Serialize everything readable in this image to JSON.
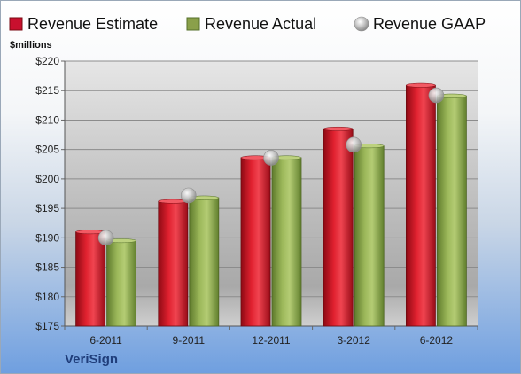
{
  "chart_data": {
    "type": "bar",
    "unit_label": "$millions",
    "categories": [
      "6-2011",
      "9-2011",
      "12-2011",
      "3-2012",
      "6-2012"
    ],
    "series": [
      {
        "name": "Revenue Estimate",
        "type": "bar",
        "color": "#c8102e",
        "values": [
          191.0,
          196.2,
          203.6,
          208.5,
          215.9
        ]
      },
      {
        "name": "Revenue Actual",
        "type": "bar",
        "color": "#8aa04a",
        "values": [
          189.5,
          196.8,
          203.6,
          205.6,
          214.1
        ]
      },
      {
        "name": "Revenue GAAP",
        "type": "marker",
        "color": "#b0b0b0",
        "values": [
          190.0,
          197.2,
          203.6,
          205.8,
          214.2
        ]
      }
    ],
    "ylim": [
      175,
      220
    ],
    "yticks": [
      "$175",
      "$180",
      "$185",
      "$190",
      "$195",
      "$200",
      "$205",
      "$210",
      "$215",
      "$220"
    ],
    "grid": true,
    "legend_position": "top"
  },
  "company": "VeriSign"
}
